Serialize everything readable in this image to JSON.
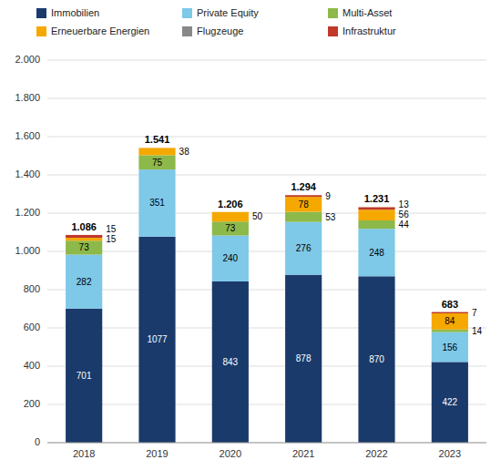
{
  "chart_data": {
    "type": "bar",
    "stacked": true,
    "categories": [
      "2018",
      "2019",
      "2020",
      "2021",
      "2022",
      "2023"
    ],
    "series": [
      {
        "name": "Immobilien",
        "color": "#1a3a6b",
        "values": [
          701,
          1077,
          843,
          878,
          870,
          422
        ]
      },
      {
        "name": "Private Equity",
        "color": "#7ec8e8",
        "values": [
          282,
          351,
          240,
          276,
          248,
          156
        ]
      },
      {
        "name": "Multi-Asset",
        "color": "#8db84a",
        "values": [
          73,
          75,
          73,
          53,
          44,
          14
        ]
      },
      {
        "name": "Erneuerbare Energien",
        "color": "#f5a800",
        "values": [
          15,
          38,
          50,
          78,
          56,
          84
        ]
      },
      {
        "name": "Flugzeuge",
        "color": "#888888",
        "values": [
          0,
          0,
          0,
          0,
          0,
          0
        ]
      },
      {
        "name": "Infrastruktur",
        "color": "#c0392b",
        "values": [
          15,
          0,
          0,
          9,
          13,
          7
        ]
      }
    ],
    "totals": {
      "values": [
        1086,
        1541,
        1206,
        1294,
        1231,
        683
      ],
      "value_labels": [
        "1.086",
        "1.541",
        "1.206",
        "1.294",
        "1.231",
        "683"
      ]
    },
    "ylim": [
      0,
      2000
    ],
    "yticks": [
      0,
      200,
      400,
      600,
      800,
      {
        "value": 1000,
        "label": "1.000"
      },
      {
        "value": 1200,
        "label": "1.200"
      },
      {
        "value": 1400,
        "label": "1.400"
      },
      {
        "value": 1600,
        "label": "1.600"
      },
      {
        "value": 1800,
        "label": "1.800"
      },
      {
        "value": 2000,
        "label": "2.000"
      }
    ],
    "grid": true,
    "data_labels": true,
    "legend": "upper left"
  }
}
